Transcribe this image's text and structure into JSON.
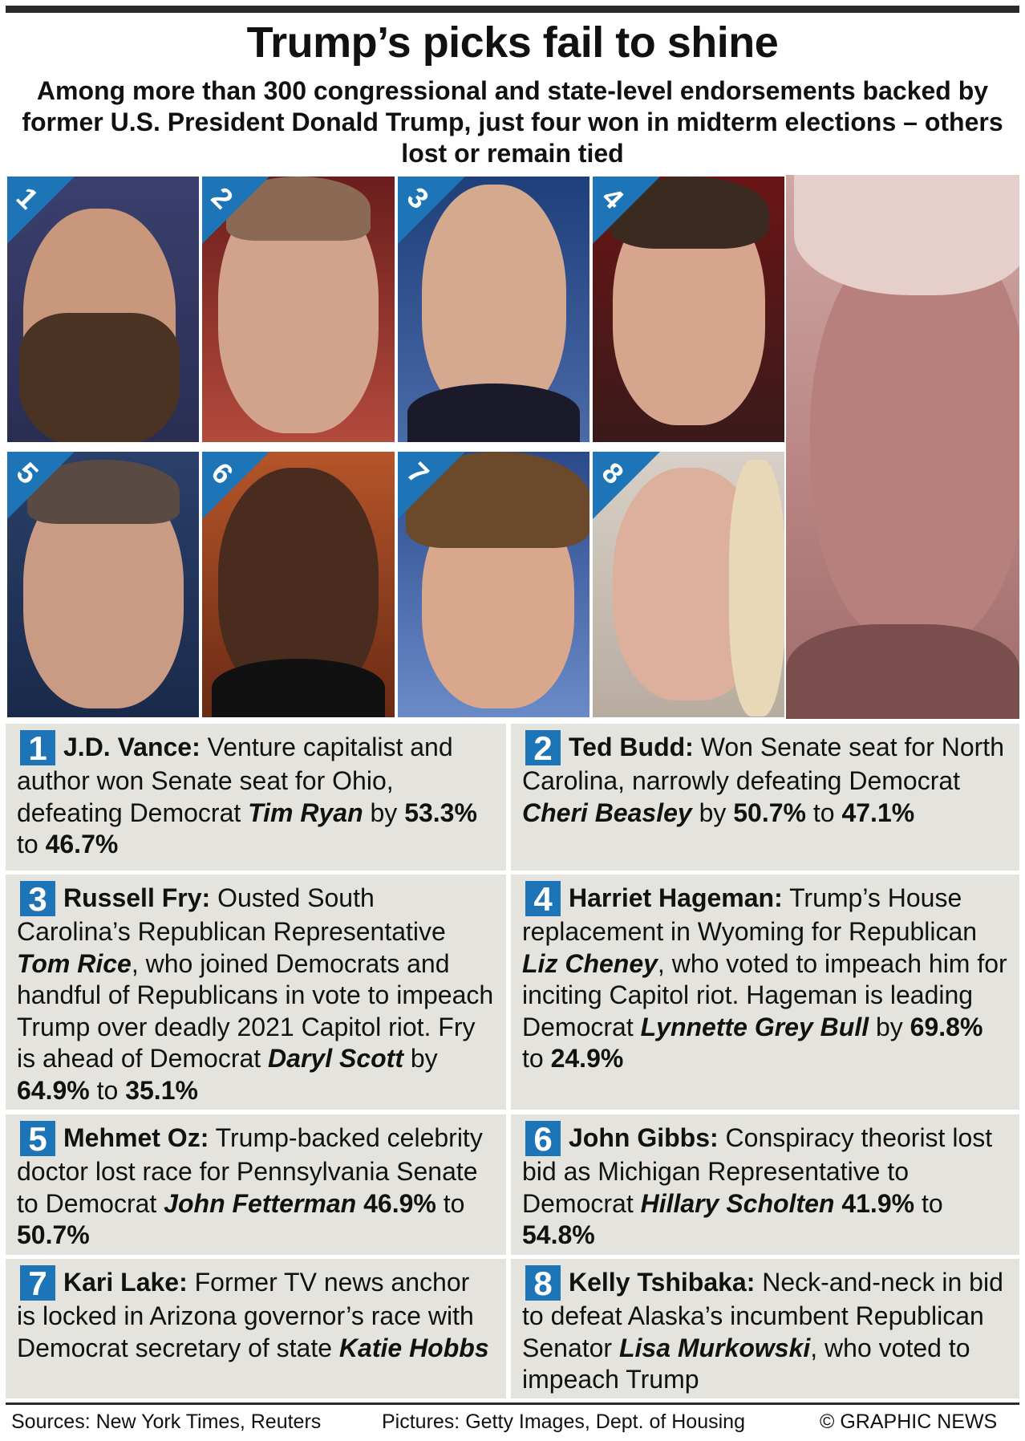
{
  "title": "Trump’s picks fail to shine",
  "subtitle": "Among more than 300 congressional and state-level endorsements backed by former U.S. President Donald Trump, just four won in midterm elections – others lost or remain tied",
  "badges": [
    "1",
    "2",
    "3",
    "4",
    "5",
    "6",
    "7",
    "8"
  ],
  "colors": {
    "accent": "#1d74b6",
    "panel": "#e4e3dd"
  },
  "entries": [
    {
      "num": "1",
      "name": "J.D. Vance:",
      "t1": " Venture capitalist and author won Senate seat for Ohio, defeating Democrat ",
      "opp": "Tim Ryan",
      "t2": " by ",
      "p1": "53.3%",
      "t3": " to ",
      "p2": "46.7%"
    },
    {
      "num": "2",
      "name": "Ted Budd:",
      "t1": " Won Senate seat for North Carolina, narrowly defeating Democrat ",
      "opp": "Cheri Beasley",
      "t2": " by ",
      "p1": "50.7%",
      "t3": " to ",
      "p2": "47.1%"
    },
    {
      "num": "3",
      "name": "Russell Fry:",
      "t1": " Ousted South Carolina’s Republican Representative ",
      "opp": "Tom Rice",
      "t1b": ", who joined Democrats and handful of Republicans in vote to impeach Trump over deadly 2021 Capitol riot. Fry is ahead of Democrat ",
      "opp2": "Daryl Scott",
      "t2": " by ",
      "p1": "64.9%",
      "t3": " to ",
      "p2": "35.1%"
    },
    {
      "num": "4",
      "name": "Harriet Hageman:",
      "t1": " Trump’s House replacement in Wyoming for Republican ",
      "opp": "Liz Cheney",
      "t1b": ", who voted to impeach him for inciting Capitol riot. Hageman is leading Democrat ",
      "opp2": "Lynnette Grey Bull",
      "t2": " by ",
      "p1": "69.8%",
      "t3": " to ",
      "p2": "24.9%"
    },
    {
      "num": "5",
      "name": "Mehmet Oz:",
      "t1": " Trump-backed celebrity doctor lost race for Pennsylvania Senate to Democrat ",
      "opp": "John Fetterman",
      "t2": " ",
      "p1": "46.9%",
      "t3": " to ",
      "p2": "50.7%"
    },
    {
      "num": "6",
      "name": "John Gibbs:",
      "t1": " Conspiracy theorist lost bid as Michigan Representative to Democrat ",
      "opp": "Hillary Scholten",
      "t2": " ",
      "p1": "41.9%",
      "t3": " to ",
      "p2": "54.8%"
    },
    {
      "num": "7",
      "name": "Kari Lake:",
      "t1": " Former TV news anchor is locked in Arizona governor’s race with Democrat secretary of state ",
      "opp": "Katie Hobbs"
    },
    {
      "num": "8",
      "name": "Kelly Tshibaka:",
      "t1": " Neck-and-neck in bid to defeat Alaska’s incumbent Republican Senator ",
      "opp": "Lisa Murkowski",
      "t1b": ", who voted to impeach Trump"
    }
  ],
  "footer": {
    "sources": "Sources: New York Times, Reuters",
    "pictures": "Pictures: Getty Images, Dept. of Housing",
    "credit": "© GRAPHIC NEWS"
  }
}
